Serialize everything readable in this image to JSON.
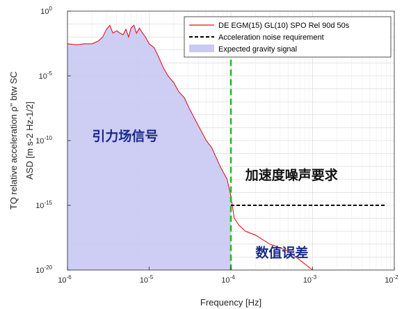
{
  "chart_data": {
    "type": "line",
    "xscale": "log",
    "yscale": "log",
    "xlim": [
      1e-06,
      0.01
    ],
    "ylim": [
      1e-20,
      1
    ],
    "grid": true,
    "legend_position": "top-right",
    "xlabel": "Frequency [Hz]",
    "ylabel_line1": "TQ relative acceleration ρ'' btw SC",
    "ylabel_line2": "ASD [m s-2 Hz-1/2]",
    "x_ticks": [
      {
        "base": "10",
        "exp": "-6",
        "value": 1e-06
      },
      {
        "base": "10",
        "exp": "-5",
        "value": 1e-05
      },
      {
        "base": "10",
        "exp": "-4",
        "value": 0.0001
      },
      {
        "base": "10",
        "exp": "-3",
        "value": 0.001
      },
      {
        "base": "10",
        "exp": "-2",
        "value": 0.01
      }
    ],
    "y_ticks": [
      {
        "base": "10",
        "exp": "0",
        "value": 1
      },
      {
        "base": "10",
        "exp": "-5",
        "value": 1e-05
      },
      {
        "base": "10",
        "exp": "-10",
        "value": 1e-10
      },
      {
        "base": "10",
        "exp": "-15",
        "value": 1e-15
      },
      {
        "base": "10",
        "exp": "-20",
        "value": 1e-20
      }
    ],
    "series": [
      {
        "name": "DE EGM(15) GL(10) SPO Rel 90d 50s",
        "kind": "line",
        "color": "#e8121c",
        "x": [
          1e-06,
          1.3e-06,
          1.6e-06,
          2e-06,
          2.4e-06,
          2.7e-06,
          3e-06,
          3.3e-06,
          3.6e-06,
          4e-06,
          4.4e-06,
          4.8e-06,
          5.2e-06,
          5.6e-06,
          6e-06,
          6.5e-06,
          7e-06,
          7.6e-06,
          8.3e-06,
          9e-06,
          1e-05,
          1.15e-05,
          1.3e-05,
          1.5e-05,
          1.7e-05,
          2e-05,
          2.3e-05,
          2.7e-05,
          3.1e-05,
          3.6e-05,
          4.2e-05,
          5e-05,
          5.8e-05,
          6.6e-05,
          7.4e-05,
          8.2e-05,
          9e-05,
          0.0001,
          0.00011,
          0.000125,
          0.00015,
          0.0002,
          0.0003,
          0.0005,
          0.001
        ],
        "y": [
          0.003,
          0.0025,
          0.003,
          0.003,
          0.005,
          0.01,
          0.04,
          0.08,
          0.02,
          0.03,
          0.02,
          0.015,
          0.04,
          0.01,
          0.05,
          0.08,
          0.02,
          0.05,
          0.02,
          0.01,
          0.003,
          0.0015,
          0.0003,
          4e-05,
          1e-05,
          3e-06,
          6e-07,
          2e-07,
          3e-08,
          5e-09,
          8e-10,
          1e-10,
          3e-11,
          5e-12,
          1e-12,
          3e-13,
          1e-13,
          5e-15,
          1e-16,
          3e-17,
          1e-17,
          5e-18,
          1e-18,
          3e-19,
          1e-20
        ]
      },
      {
        "name": "Acceleration noise requirement",
        "kind": "dashed",
        "color": "#000000",
        "x": [
          0.0001,
          0.008
        ],
        "y": [
          1e-15,
          1e-15
        ]
      },
      {
        "name": "Expected gravity signal",
        "kind": "area",
        "color": "#c9c9f4",
        "x": [
          1e-06,
          1.3e-06,
          1.6e-06,
          2e-06,
          2.4e-06,
          2.7e-06,
          3e-06,
          3.3e-06,
          3.6e-06,
          4e-06,
          4.4e-06,
          4.8e-06,
          5.2e-06,
          5.6e-06,
          6e-06,
          6.5e-06,
          7e-06,
          7.6e-06,
          8.3e-06,
          9e-06,
          1e-05,
          1.15e-05,
          1.3e-05,
          1.5e-05,
          1.7e-05,
          2e-05,
          2.3e-05,
          2.7e-05,
          3.1e-05,
          3.6e-05,
          4.2e-05,
          5e-05,
          5.8e-05,
          6.6e-05,
          7.4e-05,
          8.2e-05,
          9e-05,
          0.0001
        ],
        "y": [
          0.003,
          0.0025,
          0.003,
          0.003,
          0.005,
          0.01,
          0.04,
          0.08,
          0.02,
          0.03,
          0.02,
          0.015,
          0.04,
          0.01,
          0.05,
          0.08,
          0.02,
          0.05,
          0.02,
          0.01,
          0.003,
          0.0015,
          0.0003,
          4e-05,
          1e-05,
          3e-06,
          6e-07,
          2e-07,
          3e-08,
          5e-09,
          8e-10,
          1e-10,
          3e-11,
          5e-12,
          1e-12,
          3e-13,
          1e-13,
          5e-15
        ]
      },
      {
        "kind": "vertical-dashed",
        "color": "#22bb22",
        "x": [
          0.0001,
          0.0001
        ],
        "y": [
          0.001,
          1e-20
        ]
      }
    ],
    "annotations": [
      {
        "text": "引力场信号",
        "x": 2e-06,
        "y": 1e-10,
        "color": "#1a2a8a"
      },
      {
        "text": "加速度噪声要求",
        "x": 0.00015,
        "y": 1e-13,
        "color": "#111111"
      },
      {
        "text": "数值误差",
        "x": 0.0002,
        "y": 1e-19,
        "color": "#1a2a8a"
      }
    ]
  }
}
